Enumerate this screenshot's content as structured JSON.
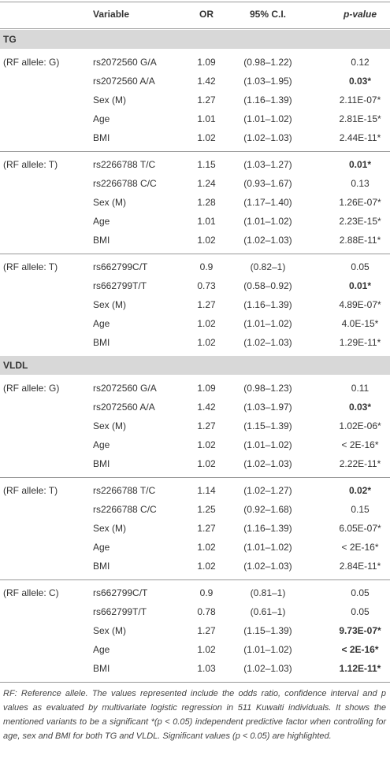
{
  "header": {
    "variable": "Variable",
    "or": "OR",
    "ci": "95% C.I.",
    "p": "p-value"
  },
  "sections": [
    {
      "title": "TG",
      "groups": [
        {
          "label": "(RF allele: G)",
          "rows": [
            {
              "variable": "rs2072560 G/A",
              "or": 1.09,
              "ci": "(0.98–1.22)",
              "p": "0.12"
            },
            {
              "variable": "rs2072560 A/A",
              "or": 1.42,
              "ci": "(1.03–1.95)",
              "p": "0.03*",
              "bold": true
            },
            {
              "variable": "Sex (M)",
              "or": 1.27,
              "ci": "(1.16–1.39)",
              "p": "2.11E-07*"
            },
            {
              "variable": "Age",
              "or": 1.01,
              "ci": "(1.01–1.02)",
              "p": "2.81E-15*"
            },
            {
              "variable": "BMI",
              "or": 1.02,
              "ci": "(1.02–1.03)",
              "p": "2.44E-11*"
            }
          ]
        },
        {
          "label": "(RF allele: T)",
          "rows": [
            {
              "variable": "rs2266788 T/C",
              "or": 1.15,
              "ci": "(1.03–1.27)",
              "p": "0.01*",
              "bold": true
            },
            {
              "variable": "rs2266788 C/C",
              "or": 1.24,
              "ci": "(0.93–1.67)",
              "p": "0.13"
            },
            {
              "variable": "Sex (M)",
              "or": 1.28,
              "ci": "(1.17–1.40)",
              "p": "1.26E-07*"
            },
            {
              "variable": "Age",
              "or": 1.01,
              "ci": "(1.01–1.02)",
              "p": "2.23E-15*"
            },
            {
              "variable": "BMI",
              "or": 1.02,
              "ci": "(1.02–1.03)",
              "p": "2.88E-11*"
            }
          ]
        },
        {
          "label": "(RF allele: T)",
          "rows": [
            {
              "variable": "rs662799C/T",
              "or": 0.9,
              "ci": "(0.82–1)",
              "p": "0.05"
            },
            {
              "variable": "rs662799T/T",
              "or": 0.73,
              "ci": "(0.58–0.92)",
              "p": "0.01*",
              "bold": true
            },
            {
              "variable": "Sex (M)",
              "or": 1.27,
              "ci": "(1.16–1.39)",
              "p": "4.89E-07*"
            },
            {
              "variable": "Age",
              "or": 1.02,
              "ci": "(1.01–1.02)",
              "p": "4.0E-15*"
            },
            {
              "variable": "BMI",
              "or": 1.02,
              "ci": "(1.02–1.03)",
              "p": "1.29E-11*"
            }
          ]
        }
      ]
    },
    {
      "title": "VLDL",
      "groups": [
        {
          "label": "(RF allele: G)",
          "rows": [
            {
              "variable": "rs2072560 G/A",
              "or": 1.09,
              "ci": "(0.98–1.23)",
              "p": "0.11"
            },
            {
              "variable": "rs2072560 A/A",
              "or": 1.42,
              "ci": "(1.03–1.97)",
              "p": "0.03*",
              "bold": true
            },
            {
              "variable": "Sex (M)",
              "or": 1.27,
              "ci": "(1.15–1.39)",
              "p": "1.02E-06*"
            },
            {
              "variable": "Age",
              "or": 1.02,
              "ci": "(1.01–1.02)",
              "p": "< 2E-16*"
            },
            {
              "variable": "BMI",
              "or": 1.02,
              "ci": "(1.02–1.03)",
              "p": "2.22E-11*"
            }
          ]
        },
        {
          "label": "(RF allele: T)",
          "rows": [
            {
              "variable": "rs2266788 T/C",
              "or": 1.14,
              "ci": "(1.02–1.27)",
              "p": "0.02*",
              "bold": true
            },
            {
              "variable": "rs2266788 C/C",
              "or": 1.25,
              "ci": "(0.92–1.68)",
              "p": "0.15"
            },
            {
              "variable": "Sex (M)",
              "or": 1.27,
              "ci": "(1.16–1.39)",
              "p": "6.05E-07*"
            },
            {
              "variable": "Age",
              "or": 1.02,
              "ci": "(1.01–1.02)",
              "p": "< 2E-16*"
            },
            {
              "variable": "BMI",
              "or": 1.02,
              "ci": "(1.02–1.03)",
              "p": "2.84E-11*"
            }
          ]
        },
        {
          "label": "(RF allele: C)",
          "rows": [
            {
              "variable": "rs662799C/T",
              "or": 0.9,
              "ci": "(0.81–1)",
              "p": "0.05"
            },
            {
              "variable": "rs662799T/T",
              "or": 0.78,
              "ci": "(0.61–1)",
              "p": "0.05"
            },
            {
              "variable": "Sex (M)",
              "or": 1.27,
              "ci": "(1.15–1.39)",
              "p": "9.73E-07*",
              "bold": true
            },
            {
              "variable": "Age",
              "or": 1.02,
              "ci": "(1.01–1.02)",
              "p": "< 2E-16*",
              "bold": true
            },
            {
              "variable": "BMI",
              "or": 1.03,
              "ci": "(1.02–1.03)",
              "p": "1.12E-11*",
              "bold": true
            }
          ]
        }
      ]
    }
  ],
  "footnote": "RF: Reference allele. The values represented include the odds ratio, confidence interval and p values as evaluated by multivariate logistic regression in 511 Kuwaiti individuals. It shows the mentioned variants to be a significant *(p < 0.05) independent predictive factor when controlling for age, sex and BMI for both TG and VLDL. Significant values (p < 0.05) are highlighted."
}
